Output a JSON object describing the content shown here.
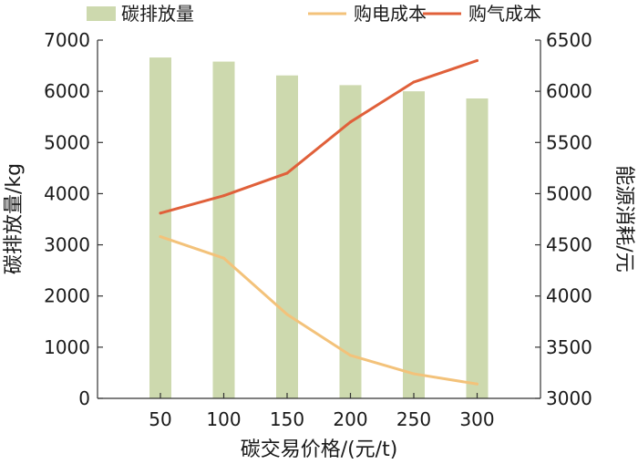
{
  "chart_data": {
    "type": "bar",
    "categories": [
      "50",
      "100",
      "150",
      "200",
      "250",
      "300"
    ],
    "xlabel": "碳交易价格/(元/t)",
    "ylabel": "碳排放量/kg",
    "y2label": "能源消耗/元",
    "ylim": [
      0,
      7000
    ],
    "y2lim": [
      3000,
      6500
    ],
    "yticks": [
      "0",
      "1000",
      "2000",
      "3000",
      "4000",
      "5000",
      "6000",
      "7000"
    ],
    "y2ticks": [
      "3000",
      "3500",
      "4000",
      "4500",
      "5000",
      "5500",
      "6000",
      "6500"
    ],
    "grid": false,
    "legend_position": "top",
    "series": [
      {
        "name": "碳排放量",
        "type": "bar",
        "axis": "left",
        "color": "#cdd9ae",
        "values": [
          6660,
          6580,
          6310,
          6120,
          6000,
          5860
        ]
      },
      {
        "name": "购电成本",
        "type": "line",
        "axis": "right",
        "color": "#f3c27a",
        "values": [
          4580,
          4370,
          3820,
          3420,
          3240,
          3140
        ]
      },
      {
        "name": "购气成本",
        "type": "line",
        "axis": "right",
        "color": "#e0603a",
        "values": [
          4810,
          4980,
          5200,
          5700,
          6090,
          6300
        ]
      }
    ]
  }
}
